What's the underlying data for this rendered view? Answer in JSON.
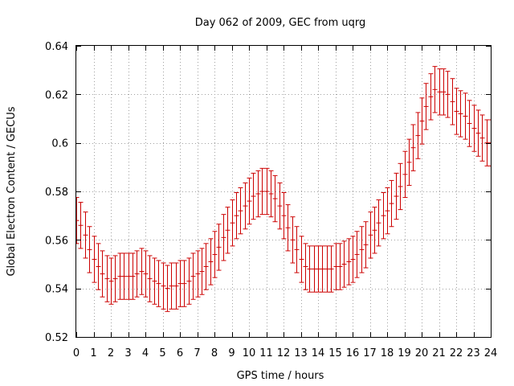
{
  "chart_data": {
    "type": "errorbar",
    "title": "Day 062 of 2009, GEC from uqrg",
    "xlabel": "GPS time / hours",
    "ylabel": "Global Electron Content / GECUs",
    "xlim": [
      0,
      24
    ],
    "ylim": [
      0.52,
      0.64
    ],
    "xticks": [
      0,
      1,
      2,
      3,
      4,
      5,
      6,
      7,
      8,
      9,
      10,
      11,
      12,
      13,
      14,
      15,
      16,
      17,
      18,
      19,
      20,
      21,
      22,
      23,
      24
    ],
    "xtick_labels": [
      "0",
      "1",
      "2",
      "3",
      "4",
      "5",
      "6",
      "7",
      "8",
      "9",
      "10",
      "11",
      "12",
      "13",
      "14",
      "15",
      "16",
      "17",
      "18",
      "19",
      "20",
      "21",
      "22",
      "23",
      "24"
    ],
    "yticks": [
      0.52,
      0.54,
      0.56,
      0.58,
      0.6,
      0.62,
      0.64
    ],
    "ytick_labels": [
      "0.52",
      "0.54",
      "0.56",
      "0.58",
      "0.6",
      "0.62",
      "0.64"
    ],
    "grid": true,
    "color": "#cc0000",
    "error": 0.0095,
    "series": [
      {
        "name": "GEC",
        "x": [
          0.0,
          0.25,
          0.5,
          0.75,
          1.0,
          1.25,
          1.5,
          1.75,
          2.0,
          2.25,
          2.5,
          2.75,
          3.0,
          3.25,
          3.5,
          3.75,
          4.0,
          4.25,
          4.5,
          4.75,
          5.0,
          5.25,
          5.5,
          5.75,
          6.0,
          6.25,
          6.5,
          6.75,
          7.0,
          7.25,
          7.5,
          7.75,
          8.0,
          8.25,
          8.5,
          8.75,
          9.0,
          9.25,
          9.5,
          9.75,
          10.0,
          10.25,
          10.5,
          10.75,
          11.0,
          11.25,
          11.5,
          11.75,
          12.0,
          12.25,
          12.5,
          12.75,
          13.0,
          13.25,
          13.5,
          13.75,
          14.0,
          14.25,
          14.5,
          14.75,
          15.0,
          15.25,
          15.5,
          15.75,
          16.0,
          16.25,
          16.5,
          16.75,
          17.0,
          17.25,
          17.5,
          17.75,
          18.0,
          18.25,
          18.5,
          18.75,
          19.0,
          19.25,
          19.5,
          19.75,
          20.0,
          20.25,
          20.5,
          20.75,
          21.0,
          21.25,
          21.5,
          21.75,
          22.0,
          22.25,
          22.5,
          22.75,
          23.0,
          23.25,
          23.5,
          23.75,
          24.0
        ],
        "y": [
          0.568,
          0.566,
          0.562,
          0.556,
          0.552,
          0.549,
          0.546,
          0.544,
          0.543,
          0.544,
          0.545,
          0.545,
          0.545,
          0.545,
          0.546,
          0.547,
          0.546,
          0.544,
          0.543,
          0.542,
          0.541,
          0.54,
          0.541,
          0.541,
          0.542,
          0.542,
          0.543,
          0.545,
          0.546,
          0.547,
          0.549,
          0.551,
          0.554,
          0.557,
          0.561,
          0.564,
          0.567,
          0.57,
          0.572,
          0.574,
          0.576,
          0.578,
          0.579,
          0.58,
          0.58,
          0.579,
          0.577,
          0.574,
          0.57,
          0.565,
          0.56,
          0.556,
          0.552,
          0.549,
          0.548,
          0.548,
          0.548,
          0.548,
          0.548,
          0.548,
          0.549,
          0.549,
          0.55,
          0.551,
          0.552,
          0.554,
          0.556,
          0.558,
          0.562,
          0.564,
          0.567,
          0.57,
          0.572,
          0.575,
          0.578,
          0.582,
          0.587,
          0.592,
          0.598,
          0.603,
          0.609,
          0.615,
          0.619,
          0.622,
          0.621,
          0.621,
          0.62,
          0.617,
          0.613,
          0.612,
          0.611,
          0.608,
          0.606,
          0.604,
          0.602,
          0.6,
          0.6
        ]
      }
    ]
  }
}
